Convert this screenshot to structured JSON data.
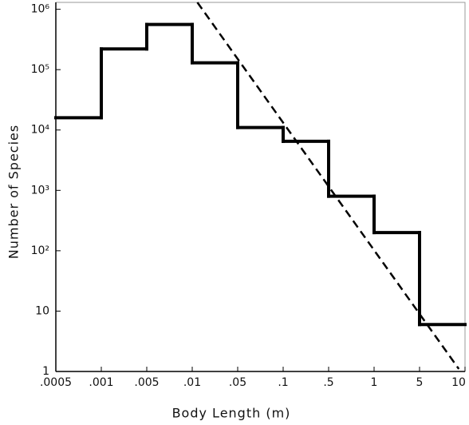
{
  "chart_data": {
    "type": "histogram",
    "xlabel": "Body Length (m)",
    "ylabel": "Number of Species",
    "bins": [
      0.0005,
      0.001,
      0.005,
      0.01,
      0.05,
      0.1,
      0.5,
      1,
      5,
      10
    ],
    "values": [
      16000,
      220000,
      560000,
      130000,
      11000,
      6500,
      800,
      200,
      6
    ],
    "color": "#000000",
    "xticks": [
      {
        "value": 0.0005,
        "label": ".0005"
      },
      {
        "value": 0.001,
        "label": ".001"
      },
      {
        "value": 0.005,
        "label": ".005"
      },
      {
        "value": 0.01,
        "label": ".01"
      },
      {
        "value": 0.05,
        "label": ".05"
      },
      {
        "value": 0.1,
        "label": ".1"
      },
      {
        "value": 0.5,
        "label": ".5"
      },
      1,
      5,
      10
    ],
    "ylim": [
      1,
      1300000
    ],
    "yticks": [
      1,
      10,
      {
        "value": 100,
        "label": "10²"
      },
      {
        "value": 1000,
        "label": "10³"
      },
      {
        "value": 10000,
        "label": "10⁴"
      },
      {
        "value": 100000,
        "label": "10⁵"
      },
      {
        "value": 1000000,
        "label": "10⁶"
      }
    ],
    "ylog": true,
    "trend_line": {
      "x": [
        0.012,
        9.1
      ],
      "y": [
        1300000,
        1.1
      ],
      "dashed": true
    }
  }
}
